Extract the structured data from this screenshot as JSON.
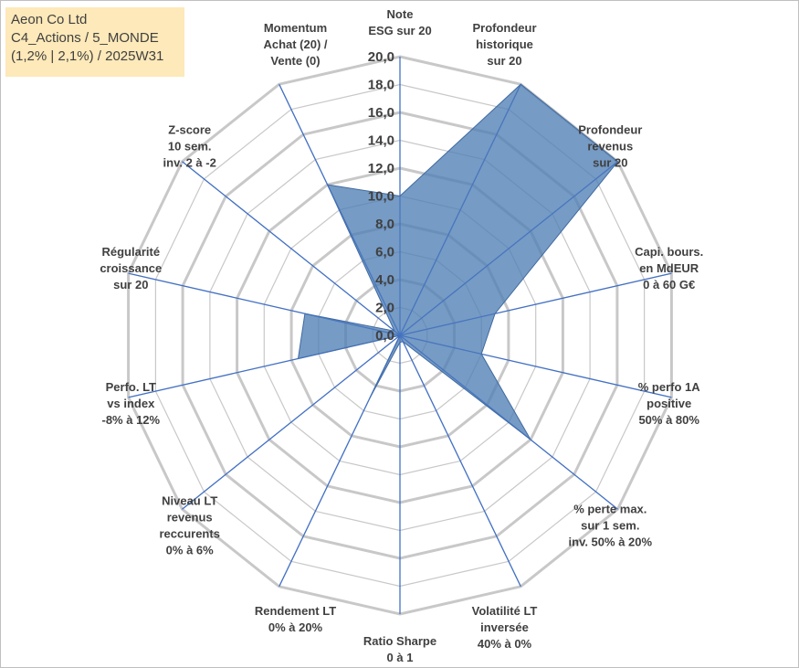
{
  "title_box": {
    "line1": "Aeon Co Ltd",
    "line2": "C4_Actions / 5_MONDE",
    "line3": "(1,2% | 2,1%) / 2025W31"
  },
  "colors": {
    "fill": "#4f7fb5",
    "spoke": "#4472c4",
    "grid": "#c8c8c8",
    "title_bg": "#fde9b9"
  },
  "chart_data": {
    "type": "radar",
    "rmin": 0,
    "rmax": 20,
    "ticks": [
      0,
      2,
      4,
      6,
      8,
      10,
      12,
      14,
      16,
      18,
      20
    ],
    "tick_labels": [
      "0,0",
      "2,0",
      "4,0",
      "6,0",
      "8,0",
      "10,0",
      "12,0",
      "14,0",
      "16,0",
      "18,0",
      "20,0"
    ],
    "axes": [
      [
        "Note",
        "ESG sur 20"
      ],
      [
        "Profondeur",
        "historique",
        "sur 20"
      ],
      [
        "Profondeur",
        "revenus",
        "sur 20"
      ],
      [
        "Capi. bours.",
        "en MdEUR",
        "0 à 60 G€"
      ],
      [
        "% perfo 1A",
        "positive",
        "50% à 80%"
      ],
      [
        "% perte max.",
        "sur 1 sem.",
        "inv. 50% à 20%"
      ],
      [
        "Volatilité LT",
        "inversée",
        "40% à 0%"
      ],
      [
        "Ratio Sharpe",
        "0 à 1"
      ],
      [
        "Rendement LT",
        "0% à 20%"
      ],
      [
        "Niveau LT",
        "revenus",
        "reccurents",
        "0% à 6%"
      ],
      [
        "Perfo. LT",
        "vs index",
        "-8% à 12%"
      ],
      [
        "Régularité",
        "croissance",
        "sur 20"
      ],
      [
        "Z-score",
        "10 sem.",
        "inv. 2 à -2"
      ],
      [
        "Momentum",
        "Achat (20) /",
        "Vente (0)"
      ]
    ],
    "values": [
      10.0,
      20.0,
      20.0,
      7.0,
      6.0,
      12.0,
      0.5,
      0.5,
      5.0,
      0.0,
      7.5,
      7.0,
      0.5,
      12.0
    ],
    "grid": true
  }
}
